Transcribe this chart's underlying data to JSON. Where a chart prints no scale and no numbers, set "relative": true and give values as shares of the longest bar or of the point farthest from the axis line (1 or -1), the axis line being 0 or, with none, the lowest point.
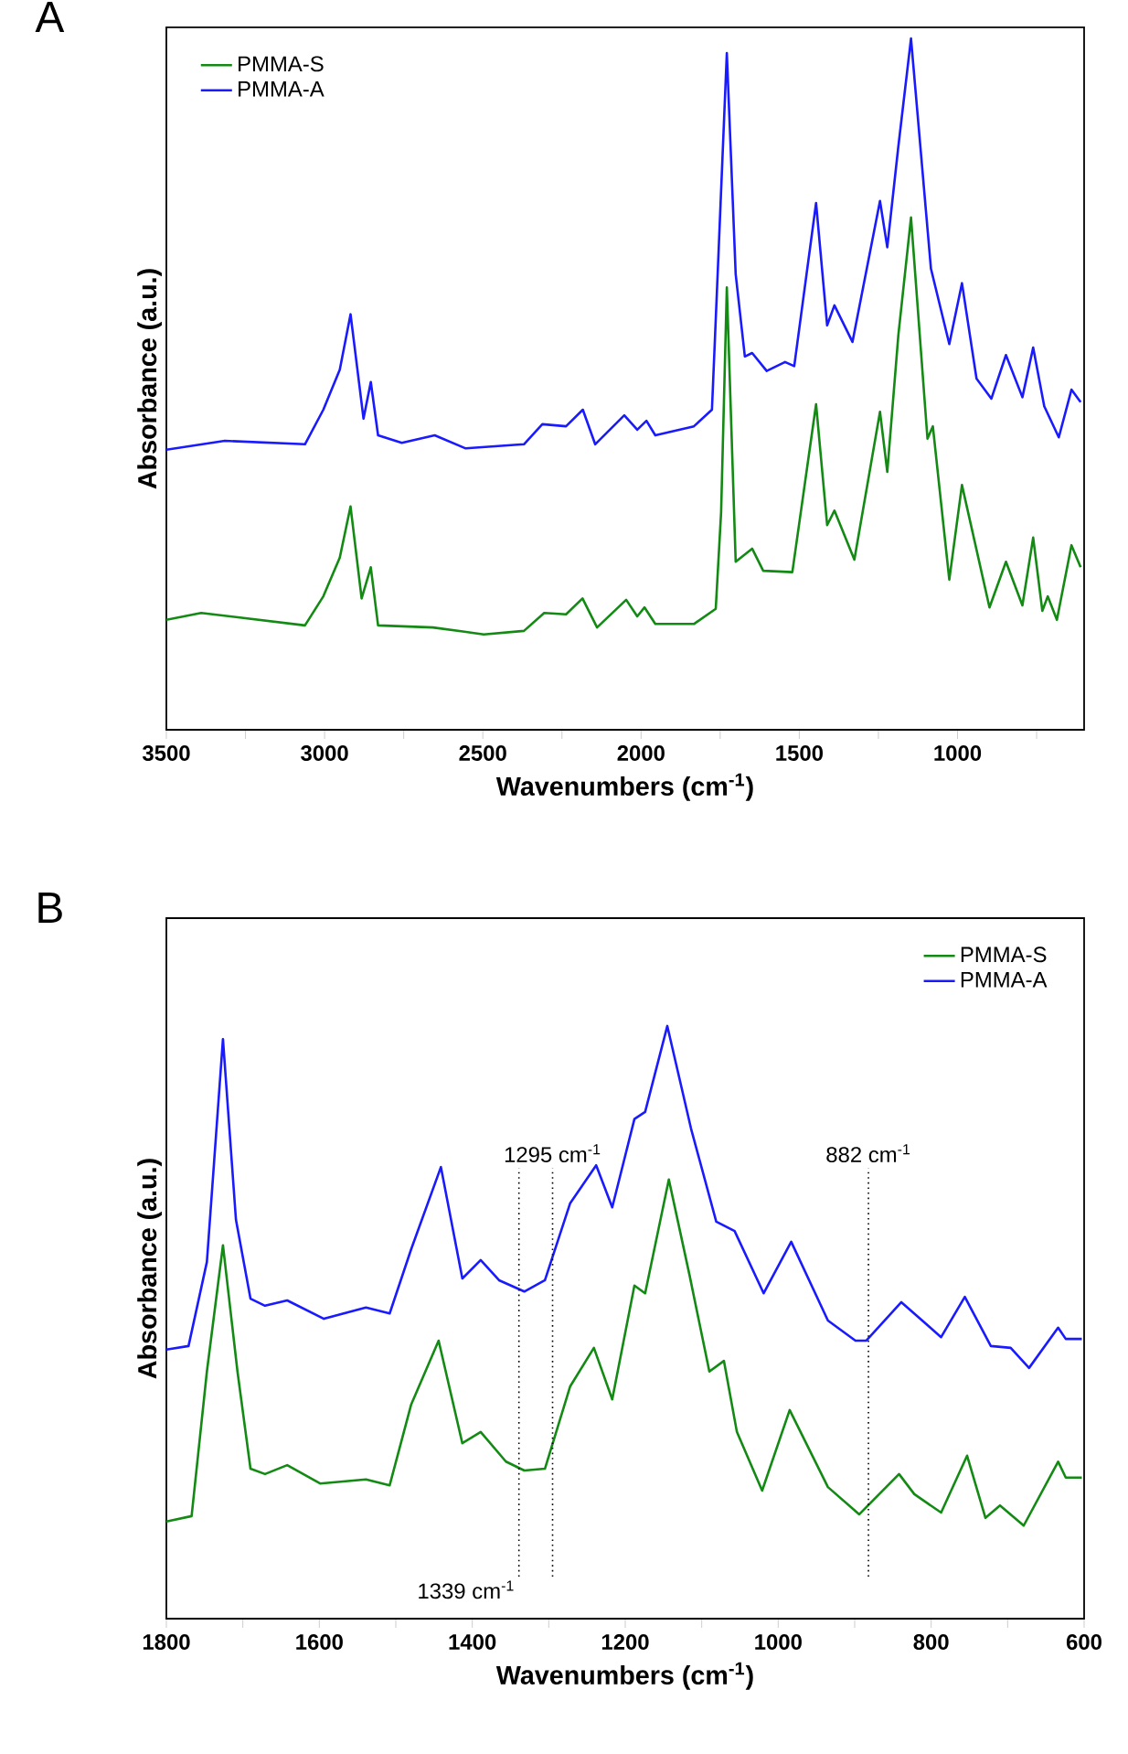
{
  "chart_data": [
    {
      "type": "line",
      "title": "A",
      "xlabel": "Wavenumbers (cm$^{-1}$)",
      "ylabel": "Absorbance (a.u.)",
      "relative": true,
      "legend": "top left",
      "xlim": [
        3500,
        600
      ],
      "xticks": [
        3500,
        {
          "value": 3250,
          "label": null
        },
        3000,
        {
          "value": 2750,
          "label": null
        },
        2500,
        {
          "value": 2250,
          "label": null
        },
        2000,
        {
          "value": 1750,
          "label": null
        },
        1500,
        {
          "value": 1250,
          "label": null
        },
        1000,
        {
          "value": 750,
          "label": null
        }
      ],
      "series": [
        {
          "name": "PMMA-S",
          "color": "#138a13",
          "x": [
            3500,
            3390,
            3062,
            3004,
            2952,
            2918,
            2883,
            2854,
            2831,
            2658,
            2497,
            2370,
            2306,
            2237,
            2185,
            2139,
            2047,
            2012,
            1989,
            1955,
            1833,
            1764,
            1747,
            1729,
            1701,
            1649,
            1614,
            1522,
            1447,
            1412,
            1389,
            1326,
            1245,
            1222,
            1187,
            1147,
            1095,
            1078,
            1026,
            986,
            899,
            847,
            795,
            761,
            732,
            715,
            686,
            640,
            611
          ],
          "values": [
            0.159,
            0.169,
            0.151,
            0.193,
            0.249,
            0.323,
            0.19,
            0.235,
            0.151,
            0.148,
            0.138,
            0.143,
            0.169,
            0.167,
            0.19,
            0.148,
            0.188,
            0.164,
            0.177,
            0.153,
            0.153,
            0.175,
            0.315,
            0.64,
            0.243,
            0.262,
            0.23,
            0.228,
            0.471,
            0.296,
            0.317,
            0.246,
            0.46,
            0.373,
            0.571,
            0.741,
            0.421,
            0.439,
            0.217,
            0.354,
            0.177,
            0.243,
            0.18,
            0.278,
            0.172,
            0.193,
            0.159,
            0.267,
            0.235
          ]
        },
        {
          "name": "PMMA-A",
          "color": "#1a1aff",
          "x": [
            3500,
            3315,
            3062,
            3004,
            2952,
            2918,
            2877,
            2854,
            2831,
            2756,
            2652,
            2554,
            2370,
            2312,
            2237,
            2184,
            2145,
            2053,
            2012,
            1983,
            1955,
            1833,
            1776,
            1758,
            1729,
            1701,
            1672,
            1649,
            1603,
            1545,
            1516,
            1447,
            1412,
            1389,
            1332,
            1245,
            1222,
            1187,
            1147,
            1084,
            1026,
            986,
            940,
            893,
            847,
            795,
            761,
            726,
            680,
            640,
            611
          ],
          "values": [
            0.405,
            0.418,
            0.413,
            0.463,
            0.521,
            0.601,
            0.45,
            0.503,
            0.426,
            0.415,
            0.426,
            0.407,
            0.413,
            0.442,
            0.439,
            0.463,
            0.413,
            0.455,
            0.434,
            0.447,
            0.426,
            0.439,
            0.463,
            0.659,
            0.979,
            0.659,
            0.54,
            0.545,
            0.519,
            0.532,
            0.526,
            0.762,
            0.585,
            0.614,
            0.561,
            0.765,
            0.698,
            0.844,
            1.0,
            0.667,
            0.558,
            0.646,
            0.508,
            0.479,
            0.542,
            0.481,
            0.553,
            0.468,
            0.423,
            0.492,
            0.474
          ]
        }
      ]
    },
    {
      "type": "line",
      "title": "B",
      "xlabel": "Wavenumbers (cm$^{-1}$)",
      "ylabel": "Absorbance (a.u.)",
      "relative": true,
      "legend": "top right",
      "xlim": [
        1800,
        600
      ],
      "xticks": [
        1800,
        {
          "value": 1700,
          "label": null
        },
        1600,
        {
          "value": 1500,
          "label": null
        },
        1400,
        {
          "value": 1300,
          "label": null
        },
        1200,
        {
          "value": 1100,
          "label": null
        },
        1000,
        {
          "value": 900,
          "label": null
        },
        800,
        {
          "value": 700,
          "label": null
        },
        600
      ],
      "series": [
        {
          "name": "PMMA-S",
          "color": "#138a13",
          "x": [
            1800,
            1767,
            1747,
            1726,
            1707,
            1690,
            1671,
            1642,
            1599,
            1539,
            1508,
            1480,
            1444,
            1413,
            1389,
            1356,
            1332,
            1305,
            1272,
            1241,
            1217,
            1188,
            1174,
            1143,
            1116,
            1090,
            1071,
            1054,
            1021,
            985,
            935,
            894,
            842,
            822,
            787,
            753,
            729,
            710,
            679,
            634,
            624,
            603
          ],
          "values": [
            0.164,
            0.173,
            0.417,
            0.63,
            0.417,
            0.253,
            0.244,
            0.259,
            0.228,
            0.235,
            0.225,
            0.361,
            0.469,
            0.296,
            0.315,
            0.265,
            0.25,
            0.253,
            0.392,
            0.457,
            0.37,
            0.562,
            0.549,
            0.741,
            0.58,
            0.417,
            0.435,
            0.315,
            0.216,
            0.352,
            0.222,
            0.176,
            0.244,
            0.21,
            0.179,
            0.275,
            0.17,
            0.191,
            0.157,
            0.265,
            0.238,
            0.238
          ]
        },
        {
          "name": "PMMA-A",
          "color": "#1a1aff",
          "x": [
            1800,
            1771,
            1747,
            1726,
            1709,
            1690,
            1671,
            1642,
            1594,
            1539,
            1508,
            1480,
            1441,
            1413,
            1389,
            1365,
            1332,
            1305,
            1272,
            1238,
            1217,
            1188,
            1174,
            1145,
            1114,
            1081,
            1057,
            1019,
            983,
            935,
            899,
            885,
            839,
            787,
            756,
            722,
            696,
            672,
            634,
            624,
            603
          ],
          "values": [
            0.454,
            0.46,
            0.602,
            0.978,
            0.673,
            0.54,
            0.528,
            0.537,
            0.506,
            0.525,
            0.515,
            0.623,
            0.762,
            0.574,
            0.605,
            0.571,
            0.552,
            0.571,
            0.701,
            0.765,
            0.694,
            0.843,
            0.855,
            1.0,
            0.827,
            0.67,
            0.654,
            0.549,
            0.636,
            0.503,
            0.469,
            0.469,
            0.534,
            0.475,
            0.543,
            0.46,
            0.457,
            0.423,
            0.491,
            0.472,
            0.472
          ]
        }
      ],
      "ref_lines": [
        {
          "axis": "x",
          "value": 1339,
          "label": "1339 cm$^{-1}$",
          "color": "#000000",
          "line_style": "dotted"
        },
        {
          "axis": "x",
          "value": 1295,
          "label": "1295 cm$^{-1}$",
          "color": "#000000",
          "line_style": "dotted"
        },
        {
          "axis": "x",
          "value": 882,
          "label": "882 cm$^{-1}$",
          "color": "#000000",
          "line_style": "dotted"
        }
      ]
    }
  ]
}
